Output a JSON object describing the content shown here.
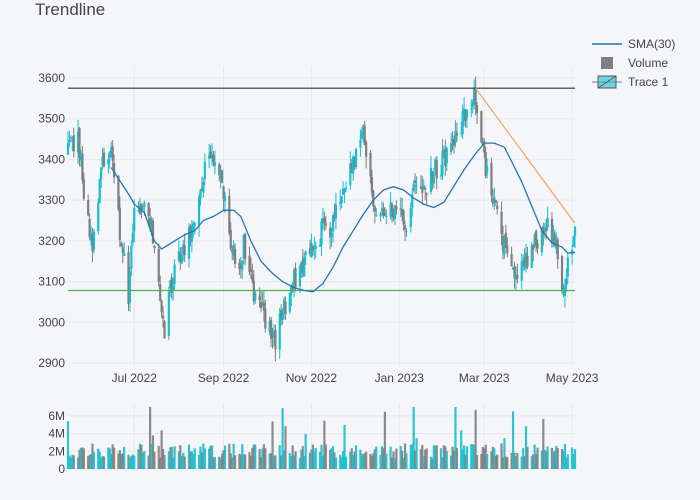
{
  "chart_data": {
    "type": "candlestick",
    "title": "Trendline",
    "xlabel": "",
    "ylabel": "",
    "x_range": [
      "2022-05-16",
      "2023-05-03"
    ],
    "ylim": [
      2880,
      3640
    ],
    "y_ticks": [
      2900,
      3000,
      3100,
      3200,
      3300,
      3400,
      3500,
      3600
    ],
    "x_ticks": [
      {
        "date": "2022-07-01",
        "label": "Jul 2022"
      },
      {
        "date": "2022-09-01",
        "label": "Sep 2022"
      },
      {
        "date": "2022-11-01",
        "label": "Nov 2022"
      },
      {
        "date": "2023-01-01",
        "label": "Jan 2023"
      },
      {
        "date": "2023-03-01",
        "label": "Mar 2023"
      },
      {
        "date": "2023-05-01",
        "label": "May 2023"
      }
    ],
    "volume_ylim": [
      0,
      7000000
    ],
    "volume_ticks": [
      {
        "value": 0,
        "label": "0"
      },
      {
        "value": 2000000,
        "label": "2M"
      },
      {
        "value": 4000000,
        "label": "4M"
      },
      {
        "value": 6000000,
        "label": "6M"
      }
    ],
    "horizontal_lines": [
      {
        "y": 3575,
        "color": "#333333"
      },
      {
        "y": 3078,
        "color": "#4caf50"
      }
    ],
    "trendline": {
      "x0": "2023-02-23",
      "y0": 3575,
      "x1": "2023-05-03",
      "y1": 3243,
      "color": "#f5a25d"
    },
    "sma_period": 30,
    "sma_line": [
      [
        "2022-06-15",
        3380
      ],
      [
        "2022-06-28",
        3310
      ],
      [
        "2022-07-01",
        3290
      ],
      [
        "2022-07-08",
        3270
      ],
      [
        "2022-07-15",
        3200
      ],
      [
        "2022-07-20",
        3180
      ],
      [
        "2022-07-29",
        3200
      ],
      [
        "2022-08-05",
        3215
      ],
      [
        "2022-08-12",
        3225
      ],
      [
        "2022-08-18",
        3250
      ],
      [
        "2022-08-25",
        3260
      ],
      [
        "2022-09-01",
        3275
      ],
      [
        "2022-09-08",
        3275
      ],
      [
        "2022-09-13",
        3260
      ],
      [
        "2022-09-20",
        3200
      ],
      [
        "2022-09-27",
        3150
      ],
      [
        "2022-10-05",
        3120
      ],
      [
        "2022-10-12",
        3100
      ],
      [
        "2022-10-20",
        3085
      ],
      [
        "2022-10-27",
        3078
      ],
      [
        "2022-11-02",
        3075
      ],
      [
        "2022-11-09",
        3095
      ],
      [
        "2022-11-16",
        3135
      ],
      [
        "2022-11-23",
        3185
      ],
      [
        "2022-11-30",
        3225
      ],
      [
        "2022-12-07",
        3265
      ],
      [
        "2022-12-14",
        3300
      ],
      [
        "2022-12-21",
        3325
      ],
      [
        "2022-12-28",
        3333
      ],
      [
        "2023-01-04",
        3325
      ],
      [
        "2023-01-11",
        3305
      ],
      [
        "2023-01-18",
        3290
      ],
      [
        "2023-01-25",
        3282
      ],
      [
        "2023-02-01",
        3295
      ],
      [
        "2023-02-08",
        3335
      ],
      [
        "2023-02-15",
        3375
      ],
      [
        "2023-02-22",
        3410
      ],
      [
        "2023-03-01",
        3440
      ],
      [
        "2023-03-08",
        3440
      ],
      [
        "2023-03-15",
        3430
      ],
      [
        "2023-03-20",
        3395
      ],
      [
        "2023-03-27",
        3345
      ],
      [
        "2023-04-03",
        3285
      ],
      [
        "2023-04-10",
        3225
      ],
      [
        "2023-04-17",
        3195
      ],
      [
        "2023-04-24",
        3185
      ],
      [
        "2023-04-28",
        3170
      ],
      [
        "2023-05-03",
        3172
      ]
    ],
    "price_anchors": [
      [
        "2022-05-16",
        3420
      ],
      [
        "2022-05-23",
        3440
      ],
      [
        "2022-05-27",
        3330
      ],
      [
        "2022-06-02",
        3180
      ],
      [
        "2022-06-08",
        3370
      ],
      [
        "2022-06-14",
        3440
      ],
      [
        "2022-06-17",
        3340
      ],
      [
        "2022-06-22",
        3200
      ],
      [
        "2022-06-27",
        3050
      ],
      [
        "2022-07-01",
        3280
      ],
      [
        "2022-07-07",
        3290
      ],
      [
        "2022-07-13",
        3230
      ],
      [
        "2022-07-18",
        3080
      ],
      [
        "2022-07-22",
        2965
      ],
      [
        "2022-07-27",
        3100
      ],
      [
        "2022-08-02",
        3170
      ],
      [
        "2022-08-09",
        3220
      ],
      [
        "2022-08-15",
        3300
      ],
      [
        "2022-08-19",
        3380
      ],
      [
        "2022-08-24",
        3420
      ],
      [
        "2022-08-30",
        3360
      ],
      [
        "2022-09-06",
        3180
      ],
      [
        "2022-09-12",
        3130
      ],
      [
        "2022-09-15",
        3190
      ],
      [
        "2022-09-21",
        3080
      ],
      [
        "2022-09-27",
        3030
      ],
      [
        "2022-10-03",
        2985
      ],
      [
        "2022-10-06",
        2950
      ],
      [
        "2022-10-12",
        3030
      ],
      [
        "2022-10-18",
        3090
      ],
      [
        "2022-10-24",
        3120
      ],
      [
        "2022-10-28",
        3155
      ],
      [
        "2022-11-03",
        3180
      ],
      [
        "2022-11-08",
        3230
      ],
      [
        "2022-11-14",
        3220
      ],
      [
        "2022-11-18",
        3280
      ],
      [
        "2022-11-24",
        3330
      ],
      [
        "2022-12-01",
        3400
      ],
      [
        "2022-12-07",
        3460
      ],
      [
        "2022-12-12",
        3350
      ],
      [
        "2022-12-16",
        3250
      ],
      [
        "2022-12-22",
        3280
      ],
      [
        "2022-12-29",
        3280
      ],
      [
        "2023-01-05",
        3240
      ],
      [
        "2023-01-11",
        3320
      ],
      [
        "2023-01-17",
        3300
      ],
      [
        "2023-01-23",
        3360
      ],
      [
        "2023-01-30",
        3390
      ],
      [
        "2023-02-03",
        3420
      ],
      [
        "2023-02-09",
        3450
      ],
      [
        "2023-02-14",
        3490
      ],
      [
        "2023-02-19",
        3530
      ],
      [
        "2023-02-23",
        3560
      ],
      [
        "2023-02-28",
        3420
      ],
      [
        "2023-03-06",
        3320
      ],
      [
        "2023-03-10",
        3270
      ],
      [
        "2023-03-14",
        3200
      ],
      [
        "2023-03-20",
        3110
      ],
      [
        "2023-03-27",
        3130
      ],
      [
        "2023-04-03",
        3170
      ],
      [
        "2023-04-10",
        3230
      ],
      [
        "2023-04-14",
        3260
      ],
      [
        "2023-04-19",
        3200
      ],
      [
        "2023-04-24",
        3080
      ],
      [
        "2023-04-28",
        3140
      ],
      [
        "2023-05-03",
        3230
      ]
    ],
    "colors": {
      "increasing": "#17becf",
      "decreasing": "#7f7f7f",
      "sma": "#1f77b4",
      "volume_up": "#17becf",
      "volume_down": "#7f7f7f",
      "grid": "#e6e8ef",
      "background": "#f5f6fa"
    },
    "legend": [
      {
        "name": "SMA(30)",
        "type": "line",
        "color": "#1f77b4"
      },
      {
        "name": "Volume",
        "type": "square",
        "color": "#7f7f7f"
      },
      {
        "name": "Trace 1",
        "type": "candle",
        "color": "#17becf"
      }
    ],
    "legend_position": "top-right"
  }
}
